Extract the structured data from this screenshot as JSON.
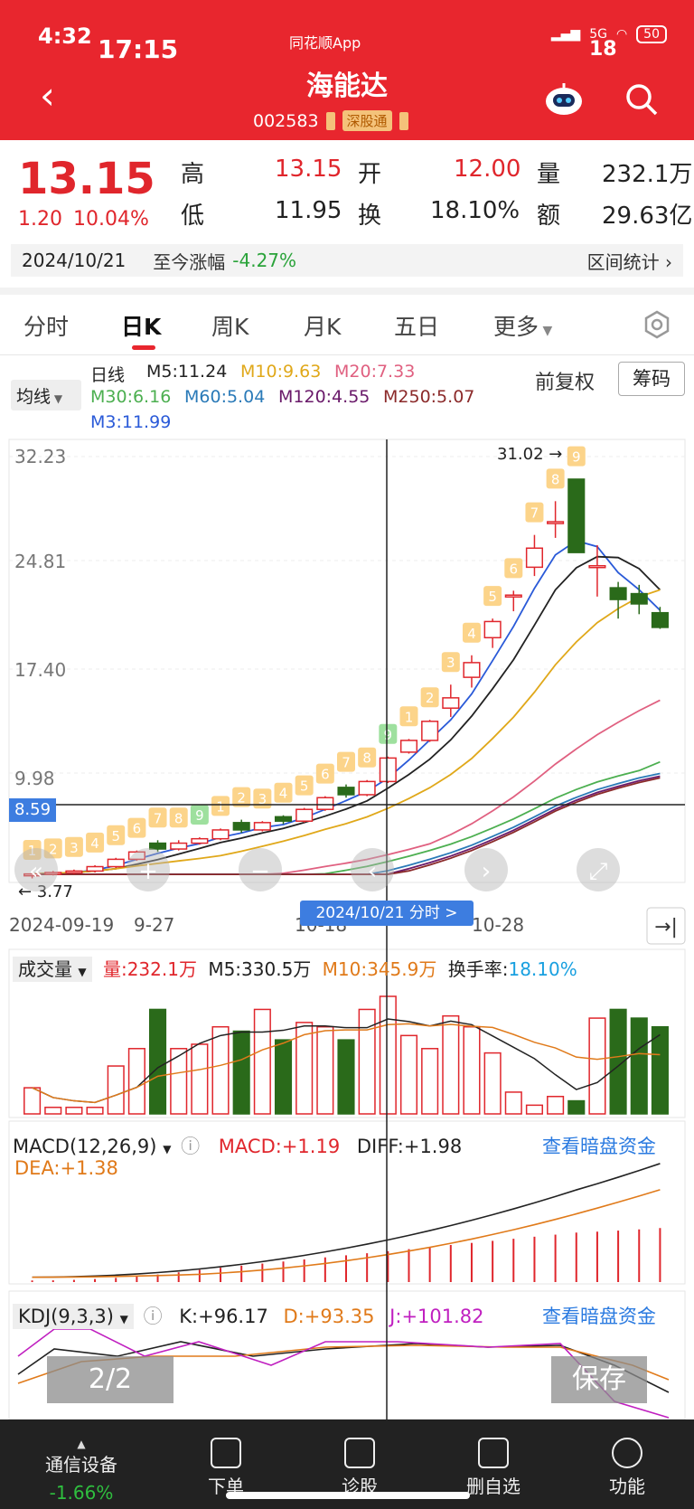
{
  "status": {
    "time": "4:32",
    "overlay_time": "17:15",
    "app_tag": "同花顺App",
    "net": "5G",
    "battery": "50",
    "overlay_num": "18"
  },
  "header": {
    "title": "海能达",
    "code": "002583",
    "board_tag": "深股通",
    "icons": [
      "back-arrow-icon",
      "robot-icon",
      "search-icon"
    ]
  },
  "quote": {
    "price": "13.15",
    "change": "1.20",
    "change_pct": "10.04%",
    "high_label": "高",
    "high": "13.15",
    "open_label": "开",
    "open": "12.00",
    "vol_label": "量",
    "vol": "232.1万",
    "low_label": "低",
    "low": "11.95",
    "turnover_label": "换",
    "turnover": "18.10%",
    "amount_label": "额",
    "amount": "29.63亿",
    "date": "2024/10/21",
    "since_label": "至今涨幅",
    "since_pct": "-4.27%",
    "range_stats": "区间统计"
  },
  "tabs": [
    "分时",
    "日K",
    "周K",
    "月K",
    "五日",
    "更多"
  ],
  "active_tab": "日K",
  "ma": {
    "btn": "均线",
    "period": "日线",
    "m5": "M5:11.24",
    "m10": "M10:9.63",
    "m20": "M20:7.33",
    "m30": "M30:6.16",
    "m60": "M60:5.04",
    "m120": "M120:4.55",
    "m250": "M250:5.07",
    "m3": "M3:11.99",
    "fq": "前复权",
    "cm": "筹码",
    "colors": {
      "m5": "#222222",
      "m10": "#e0a81a",
      "m20": "#e06080",
      "m30": "#4caf50",
      "m60": "#2a7ab8",
      "m120": "#6a1a6a",
      "m250": "#8b2a2a",
      "m3": "#2a5ad8"
    }
  },
  "kline": {
    "y_ticks": [
      "32.23",
      "24.81",
      "17.40",
      "9.98",
      "8.59"
    ],
    "max_label": "31.02",
    "min_label": "3.77",
    "x_labels": [
      "2024-09-19",
      "9-27",
      "10-18",
      "10-28"
    ],
    "cross_date": "2024/10/21  分时 >",
    "count_labels": [
      "1",
      "2",
      "3",
      "4",
      "5",
      "6",
      "7",
      "8",
      "9",
      "1",
      "2",
      "3",
      "4",
      "5",
      "6",
      "7",
      "8",
      "9",
      "1",
      "2",
      "3",
      "4",
      "5",
      "6",
      "7",
      "8",
      "9"
    ]
  },
  "volume": {
    "btn": "成交量",
    "vol": "量:232.1万",
    "m5": "M5:330.5万",
    "m10": "M10:345.9万",
    "turnover_label": "换手率:",
    "turnover": "18.10%"
  },
  "macd": {
    "btn": "MACD(12,26,9)",
    "macd": "MACD:+1.19",
    "diff": "DIFF:+1.98",
    "dea": "DEA:+1.38",
    "link": "查看暗盘资金"
  },
  "kdj": {
    "btn": "KDJ(9,3,3)",
    "k": "K:+96.17",
    "d": "D:+93.35",
    "j": "J:+101.82",
    "link": "查看暗盘资金"
  },
  "overlay": {
    "page": "2/2",
    "save": "保存"
  },
  "bottom": {
    "sector": "通信设备",
    "sector_pct": "-1.66%",
    "items": [
      "下单",
      "诊股",
      "删自选",
      "功能"
    ]
  },
  "chart_data": {
    "type": "candlestick",
    "title": "",
    "xlabel": "",
    "ylabel": "",
    "ylim": [
      3.77,
      32.23
    ],
    "candles": [
      {
        "o": 4.0,
        "c": 4.1,
        "h": 4.2,
        "l": 3.8
      },
      {
        "o": 4.1,
        "c": 4.2,
        "h": 4.3,
        "l": 4.0
      },
      {
        "o": 4.2,
        "c": 4.3,
        "h": 4.4,
        "l": 4.1
      },
      {
        "o": 4.3,
        "c": 4.6,
        "h": 4.7,
        "l": 4.2
      },
      {
        "o": 4.6,
        "c": 5.1,
        "h": 5.2,
        "l": 4.5
      },
      {
        "o": 5.1,
        "c": 5.6,
        "h": 5.7,
        "l": 5.0
      },
      {
        "o": 6.2,
        "c": 5.8,
        "h": 6.4,
        "l": 5.6
      },
      {
        "o": 5.8,
        "c": 6.2,
        "h": 6.4,
        "l": 5.7
      },
      {
        "o": 6.2,
        "c": 6.5,
        "h": 6.6,
        "l": 6.1
      },
      {
        "o": 6.5,
        "c": 7.1,
        "h": 7.2,
        "l": 6.4
      },
      {
        "o": 7.6,
        "c": 7.1,
        "h": 7.8,
        "l": 6.9
      },
      {
        "o": 7.1,
        "c": 7.6,
        "h": 7.7,
        "l": 7.0
      },
      {
        "o": 8.0,
        "c": 7.7,
        "h": 8.1,
        "l": 7.5
      },
      {
        "o": 7.7,
        "c": 8.5,
        "h": 8.6,
        "l": 7.6
      },
      {
        "o": 8.5,
        "c": 9.3,
        "h": 9.4,
        "l": 8.4
      },
      {
        "o": 10.0,
        "c": 9.5,
        "h": 10.2,
        "l": 9.3
      },
      {
        "o": 9.5,
        "c": 10.4,
        "h": 10.5,
        "l": 9.4
      },
      {
        "o": 10.4,
        "c": 12.0,
        "h": 12.1,
        "l": 10.3
      },
      {
        "o": 12.4,
        "c": 13.2,
        "h": 13.3,
        "l": 12.3
      },
      {
        "o": 13.2,
        "c": 14.5,
        "h": 14.6,
        "l": 13.1
      },
      {
        "o": 15.4,
        "c": 16.1,
        "h": 17.0,
        "l": 14.8
      },
      {
        "o": 17.5,
        "c": 18.5,
        "h": 19.0,
        "l": 16.8
      },
      {
        "o": 20.2,
        "c": 21.3,
        "h": 21.5,
        "l": 19.5
      },
      {
        "o": 23.0,
        "c": 23.1,
        "h": 23.4,
        "l": 22.0
      },
      {
        "o": 25.0,
        "c": 26.3,
        "h": 27.2,
        "l": 24.4
      },
      {
        "o": 28.0,
        "c": 28.1,
        "h": 29.5,
        "l": 27.0
      },
      {
        "o": 31.0,
        "c": 26.0,
        "h": 31.02,
        "l": 26.0
      },
      {
        "o": 25.0,
        "c": 25.1,
        "h": 26.5,
        "l": 23.0
      },
      {
        "o": 23.6,
        "c": 22.8,
        "h": 24.0,
        "l": 21.5
      },
      {
        "o": 23.2,
        "c": 22.5,
        "h": 23.8,
        "l": 21.8
      },
      {
        "o": 21.9,
        "c": 20.9,
        "h": 22.3,
        "l": 20.8
      }
    ]
  }
}
